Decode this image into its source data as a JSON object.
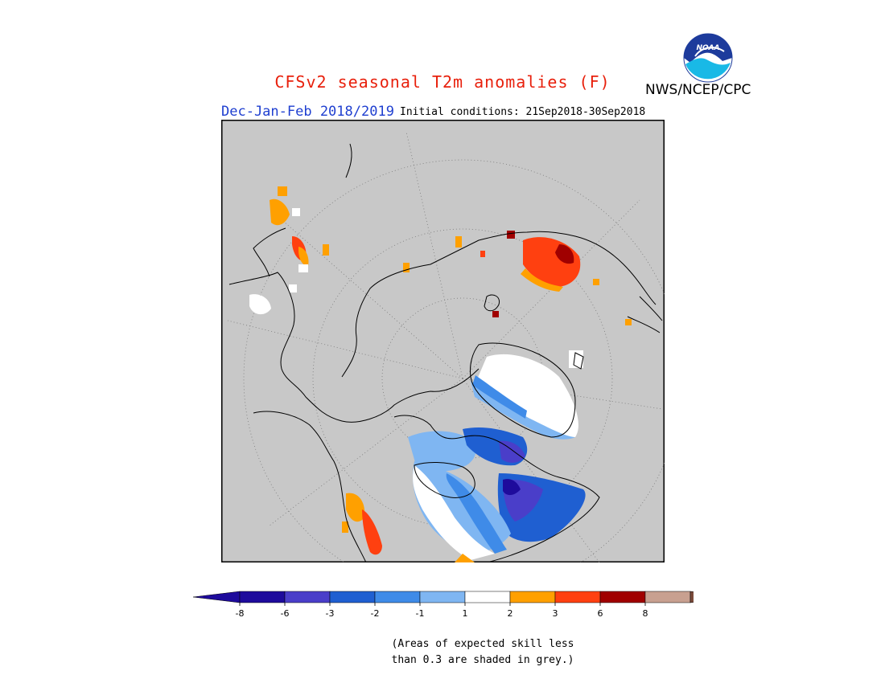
{
  "header": {
    "title": "CFSv2 seasonal T2m anomalies (F)",
    "agency": "NWS/NCEP/CPC",
    "logo_text": "NOAA",
    "season": "Dec-Jan-Feb 2018/2019",
    "initial_conditions": "Initial conditions: 21Sep2018-30Sep2018"
  },
  "map": {
    "projection": "north-polar-stereographic",
    "background_color": "#c8c8c8",
    "note": "Areas of expected skill less than 0.3 are shaded in grey."
  },
  "colorbar": {
    "tick_labels": [
      "-8",
      "-6",
      "-3",
      "-2",
      "-1",
      "1",
      "2",
      "3",
      "6",
      "8"
    ],
    "colors": [
      "#1e0b9c",
      "#4a3ec9",
      "#1f5fd1",
      "#3f8be8",
      "#7fb6f2",
      "#ffffff",
      "#ffa000",
      "#ff4010",
      "#a00000",
      "#c8a090",
      "#7a4a3a"
    ],
    "under_color": "#1e0b9c",
    "over_color": "#7a4a3a"
  },
  "footer": {
    "line1": "(Areas of expected skill less",
    "line2": "than 0.3 are shaded in grey.)"
  }
}
